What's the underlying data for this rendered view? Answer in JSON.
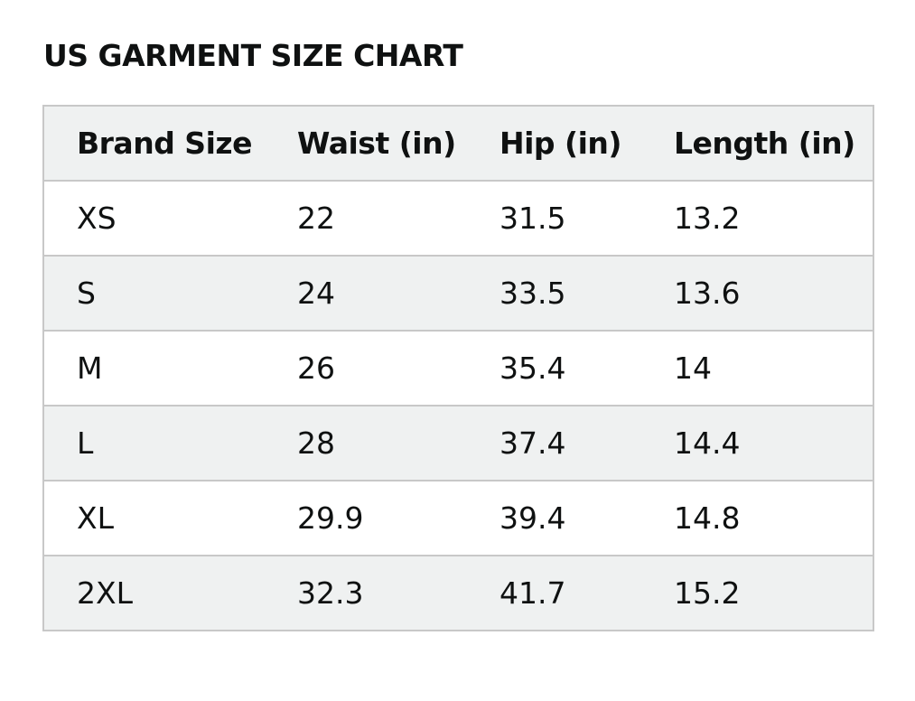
{
  "title": "US GARMENT SIZE CHART",
  "table": {
    "headers": [
      "Brand Size",
      "Waist (in)",
      "Hip (in)",
      "Length (in)"
    ],
    "rows": [
      [
        "XS",
        "22",
        "31.5",
        "13.2"
      ],
      [
        "S",
        "24",
        "33.5",
        "13.6"
      ],
      [
        "M",
        "26",
        "35.4",
        "14"
      ],
      [
        "L",
        "28",
        "37.4",
        "14.4"
      ],
      [
        "XL",
        "29.9",
        "39.4",
        "14.8"
      ],
      [
        "2XL",
        "32.3",
        "41.7",
        "15.2"
      ]
    ]
  },
  "colors": {
    "text": "#0f1111",
    "border": "#c8c8c8",
    "shaded_row": "#eff1f1",
    "plain_row": "#ffffff"
  }
}
